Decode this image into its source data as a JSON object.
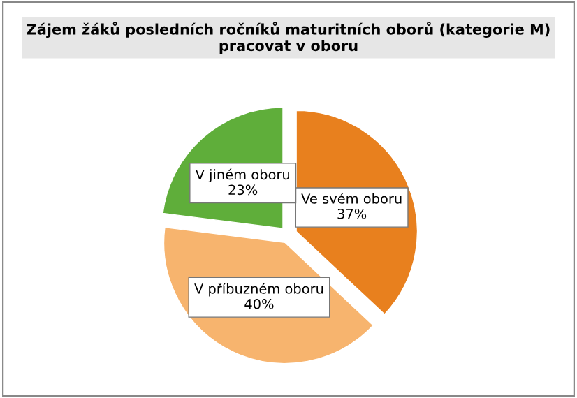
{
  "chart_data": {
    "type": "pie",
    "title": "Zájem žáků posledních ročníků maturitních oborů (kategorie M) pracovat v oboru",
    "categories": [
      "Ve svém oboru",
      "V příbuzném oboru",
      "V jiném oboru"
    ],
    "values": [
      37,
      40,
      23
    ],
    "colors": [
      "#e8801e",
      "#f7b46e",
      "#5fae3a"
    ],
    "value_labels": [
      "37%",
      "40%",
      "23%"
    ]
  }
}
